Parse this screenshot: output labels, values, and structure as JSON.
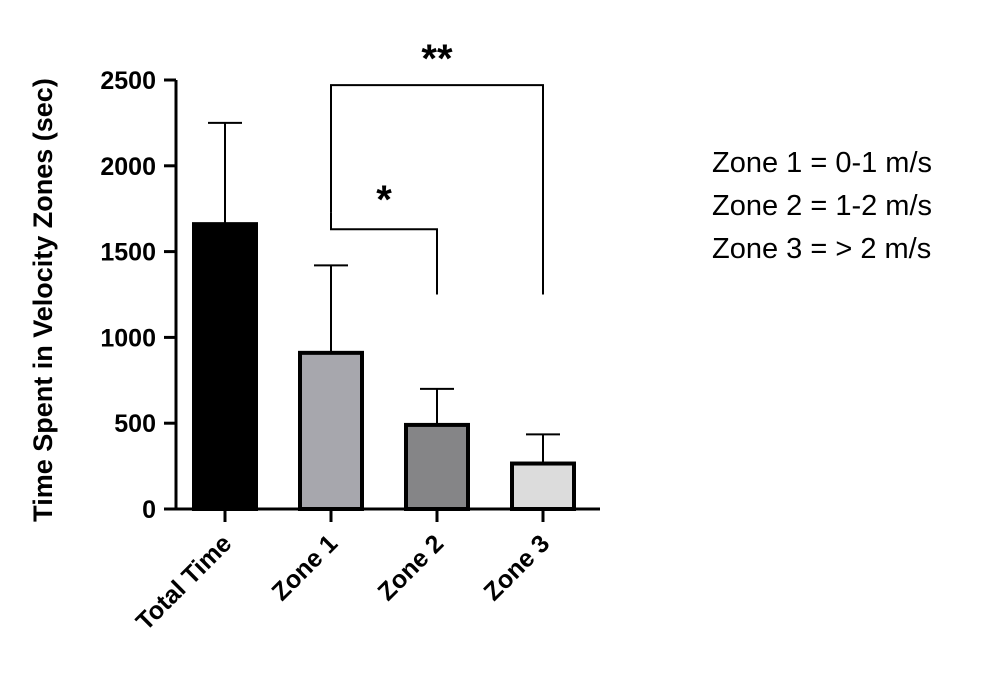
{
  "chart_data": {
    "type": "bar",
    "title": "",
    "xlabel": "",
    "ylabel": "Time Spent in Velocity Zones (sec)",
    "ylim": [
      0,
      2500
    ],
    "yticks": [
      0,
      500,
      1000,
      1500,
      2000,
      2500
    ],
    "categories": [
      "Total Time",
      "Zone 1",
      "Zone 2",
      "Zone 3"
    ],
    "values": [
      1660,
      910,
      490,
      265
    ],
    "errors": [
      590,
      510,
      210,
      170
    ],
    "bar_colors": [
      "#000000",
      "#a7a7ad",
      "#858587",
      "#dcdcdc"
    ],
    "significance": [
      {
        "from": 1,
        "to": 2,
        "label": "*"
      },
      {
        "from": 1,
        "to": 3,
        "label": "**"
      }
    ],
    "annotations": [
      "Zone 1 = 0-1 m/s",
      "Zone 2 = 1-2 m/s",
      "Zone 3 = > 2 m/s"
    ]
  }
}
